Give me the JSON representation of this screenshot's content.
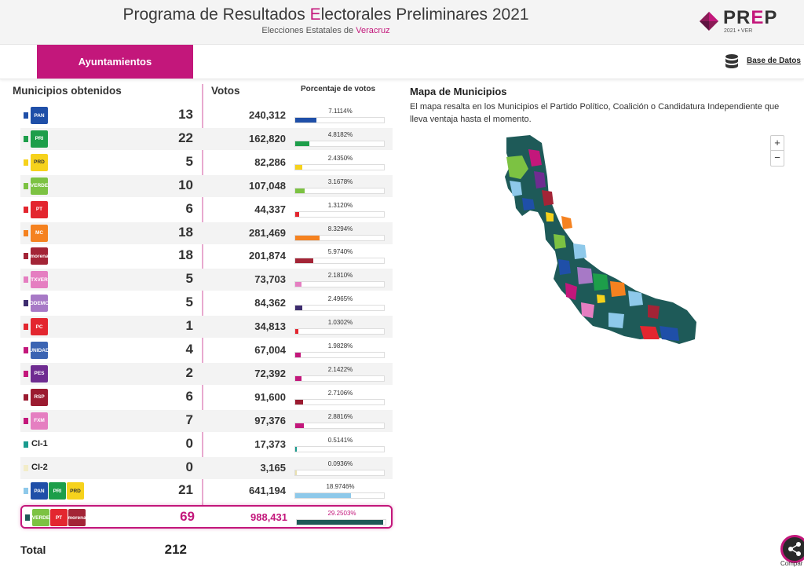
{
  "header": {
    "title_pre": "Programa de Resultados ",
    "title_hl": "E",
    "title_post": "lectorales Preliminares 2021",
    "subtitle_pre": "Elecciones Estatales de ",
    "subtitle_hl": "Veracruz",
    "logo_pr": "PR",
    "logo_e": "E",
    "logo_p": "P",
    "logo_sub": "2021 • VER"
  },
  "nav": {
    "tab_active": "Ayuntamientos",
    "db_link": "Base de Datos",
    "db_icon": "database-icon"
  },
  "table": {
    "h_municipios": "Municipios obtenidos",
    "h_votos": "Votos",
    "h_porcentaje": "Porcentaje de votos",
    "rows": [
      {
        "marker": "#1f4fa8",
        "logos": [
          {
            "t": "PAN",
            "c": "#1f4fa8"
          }
        ],
        "count": "13",
        "votes": "240,312",
        "pct": "7.1114%",
        "pct_value": 7.1114
      },
      {
        "marker": "#1d9e4a",
        "logos": [
          {
            "t": "PRI",
            "c": "#1d9e4a"
          }
        ],
        "count": "22",
        "votes": "162,820",
        "pct": "4.8182%",
        "pct_value": 4.8182
      },
      {
        "marker": "#f6d21c",
        "logos": [
          {
            "t": "PRD",
            "c": "#f6d21c"
          }
        ],
        "count": "5",
        "votes": "82,286",
        "pct": "2.4350%",
        "pct_value": 2.435
      },
      {
        "marker": "#7cc242",
        "logos": [
          {
            "t": "VERDE",
            "c": "#7cc242"
          }
        ],
        "count": "10",
        "votes": "107,048",
        "pct": "3.1678%",
        "pct_value": 3.1678
      },
      {
        "marker": "#e3262f",
        "logos": [
          {
            "t": "PT",
            "c": "#e3262f"
          }
        ],
        "count": "6",
        "votes": "44,337",
        "pct": "1.3120%",
        "pct_value": 1.312
      },
      {
        "marker": "#f58220",
        "logos": [
          {
            "t": "MC",
            "c": "#f58220"
          }
        ],
        "count": "18",
        "votes": "281,469",
        "pct": "8.3294%",
        "pct_value": 8.3294
      },
      {
        "marker": "#a32436",
        "logos": [
          {
            "t": "morena",
            "c": "#a32436"
          }
        ],
        "count": "18",
        "votes": "201,874",
        "pct": "5.9740%",
        "pct_value": 5.974
      },
      {
        "marker": "#e57ec1",
        "logos": [
          {
            "t": "TXVER",
            "c": "#e57ec1"
          }
        ],
        "count": "5",
        "votes": "73,703",
        "pct": "2.1810%",
        "pct_value": 2.181
      },
      {
        "marker": "#3d2c6e",
        "logos": [
          {
            "t": "PODEMOS",
            "c": "#a779c6"
          }
        ],
        "count": "5",
        "votes": "84,362",
        "pct": "2.4965%",
        "pct_value": 2.4965
      },
      {
        "marker": "#e3262f",
        "logos": [
          {
            "t": "PC",
            "c": "#e3262f"
          }
        ],
        "count": "1",
        "votes": "34,813",
        "pct": "1.0302%",
        "pct_value": 1.0302
      },
      {
        "marker": "#c3177b",
        "logos": [
          {
            "t": "UNIDAD",
            "c": "#3b64b3"
          }
        ],
        "count": "4",
        "votes": "67,004",
        "pct": "1.9828%",
        "pct_value": 1.9828
      },
      {
        "marker": "#c3177b",
        "logos": [
          {
            "t": "PES",
            "c": "#6f2c91"
          }
        ],
        "count": "2",
        "votes": "72,392",
        "pct": "2.1422%",
        "pct_value": 2.1422
      },
      {
        "marker": "#9b1b30",
        "logos": [
          {
            "t": "RSP",
            "c": "#9b1b30"
          }
        ],
        "count": "6",
        "votes": "91,600",
        "pct": "2.7106%",
        "pct_value": 2.7106
      },
      {
        "marker": "#c3177b",
        "logos": [
          {
            "t": "FXM",
            "c": "#e57ec1"
          }
        ],
        "count": "7",
        "votes": "97,376",
        "pct": "2.8816%",
        "pct_value": 2.8816
      },
      {
        "marker": "#1a9b8e",
        "label": "CI-1",
        "logos": [],
        "count": "0",
        "votes": "17,373",
        "pct": "0.5141%",
        "pct_value": 0.5141
      },
      {
        "marker": "#f2ecc8",
        "label": "CI-2",
        "logos": [],
        "count": "0",
        "votes": "3,165",
        "pct": "0.0936%",
        "pct_value": 0.0936
      },
      {
        "marker": "#8ec9ea",
        "logos": [
          {
            "t": "PAN",
            "c": "#1f4fa8"
          },
          {
            "t": "PRI",
            "c": "#1d9e4a"
          },
          {
            "t": "PRD",
            "c": "#f6d21c"
          }
        ],
        "count": "21",
        "votes": "641,194",
        "pct": "18.9746%",
        "pct_value": 18.9746
      },
      {
        "marker": "#1e5a58",
        "logos": [
          {
            "t": "VERDE",
            "c": "#7cc242"
          },
          {
            "t": "PT",
            "c": "#e3262f"
          },
          {
            "t": "morena",
            "c": "#a32436"
          }
        ],
        "count": "69",
        "votes": "988,431",
        "pct": "29.2503%",
        "pct_value": 29.2503,
        "lead": true
      }
    ],
    "total_label": "Total",
    "total_value": "212"
  },
  "map": {
    "title": "Mapa de Municipios",
    "description": "El mapa resalta en los Municipios el Partido Político, Coalición o Candidatura Independiente que lleva ventaja hasta el momento.",
    "zoom_in": "+",
    "zoom_out": "−"
  },
  "share": {
    "label": "Compar",
    "icon": "share-icon"
  }
}
